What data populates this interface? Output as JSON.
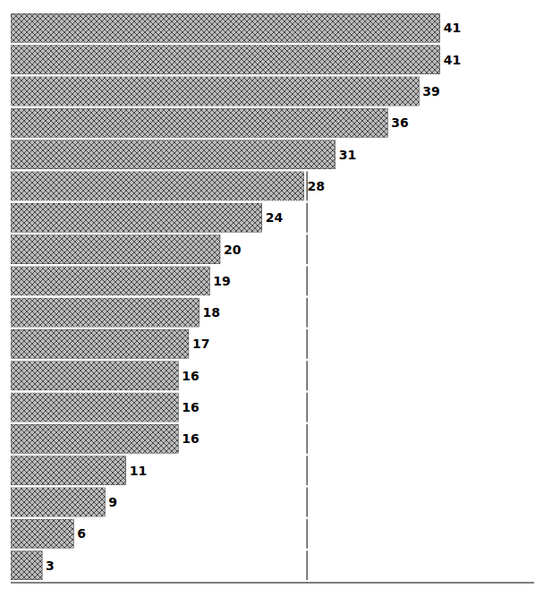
{
  "chart_data": {
    "type": "bar",
    "orientation": "horizontal",
    "values": [
      41,
      41,
      39,
      36,
      31,
      28,
      24,
      20,
      19,
      18,
      17,
      16,
      16,
      16,
      11,
      9,
      6,
      3
    ],
    "color": "#bbbbbb",
    "xlim": [
      0,
      50
    ],
    "reference_line": 28.3,
    "data_labels": true,
    "tick_labels": false,
    "grid": false
  }
}
